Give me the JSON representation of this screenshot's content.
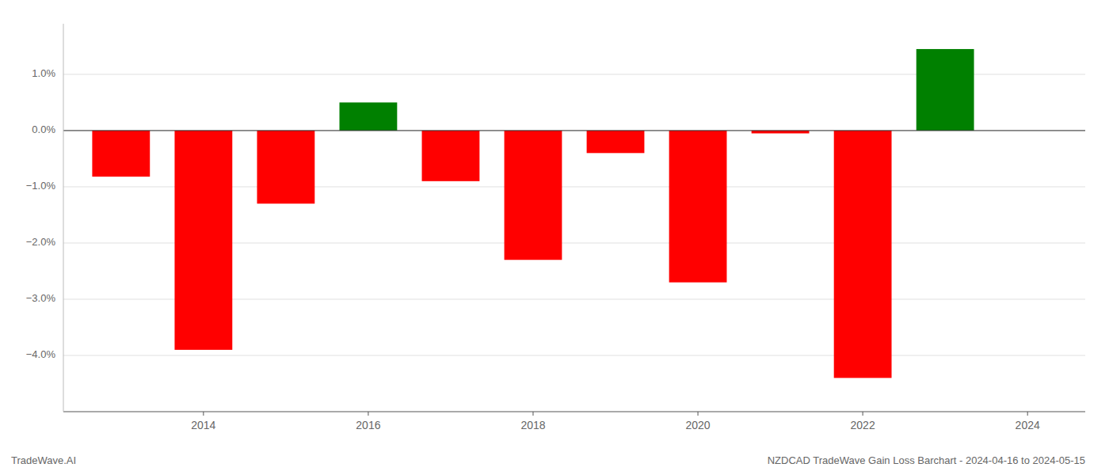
{
  "chart_data": {
    "type": "bar",
    "title": "NZDCAD TradeWave Gain Loss Barchart - 2024-04-16 to 2024-05-15",
    "annotations": [
      "TradeWave.AI"
    ],
    "x": [
      2013,
      2014,
      2015,
      2016,
      2017,
      2018,
      2019,
      2020,
      2021,
      2022,
      2023
    ],
    "values": [
      -0.82,
      -3.9,
      -1.3,
      0.5,
      -0.9,
      -2.3,
      -0.4,
      -2.7,
      -0.05,
      -4.4,
      1.45
    ],
    "colors": [
      "#ff0000",
      "#ff0000",
      "#ff0000",
      "#008000",
      "#ff0000",
      "#ff0000",
      "#ff0000",
      "#ff0000",
      "#ff0000",
      "#ff0000",
      "#008000"
    ],
    "xlim": [
      2012.3,
      2024.7
    ],
    "xticks": [
      2014,
      2016,
      2018,
      2020,
      2022,
      2024
    ],
    "ylim": [
      -5.0,
      1.9
    ],
    "yticks": [
      {
        "value": -4.0,
        "label": "−4.0%"
      },
      {
        "value": -3.0,
        "label": "−3.0%"
      },
      {
        "value": -2.0,
        "label": "−2.0%"
      },
      {
        "value": -1.0,
        "label": "−1.0%"
      },
      {
        "value": 0.0,
        "label": "0.0%"
      },
      {
        "value": 1.0,
        "label": "1.0%"
      }
    ],
    "grid": true
  }
}
